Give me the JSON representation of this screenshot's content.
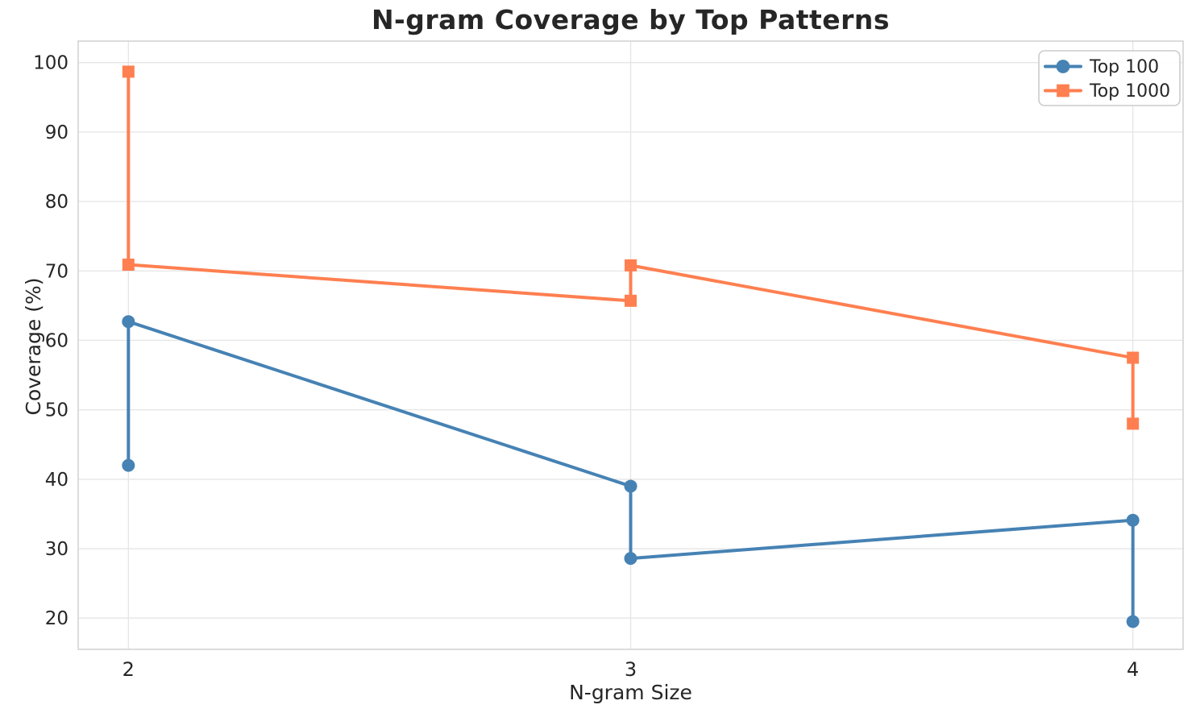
{
  "chart_data": {
    "type": "line",
    "title": "N-gram Coverage by Top Patterns",
    "xlabel": "N-gram Size",
    "ylabel": "Coverage (%)",
    "x_ticks": [
      2,
      3,
      4
    ],
    "y_ticks": [
      20,
      30,
      40,
      50,
      60,
      70,
      80,
      90,
      100
    ],
    "xlim": [
      1.9,
      4.1
    ],
    "ylim": [
      15.5,
      103.1
    ],
    "grid": true,
    "legend": {
      "position": "upper right",
      "entries": [
        "Top 100",
        "Top 1000"
      ]
    },
    "series": [
      {
        "name": "Top 100",
        "color": "#4682B4",
        "marker": "circle",
        "points": [
          [
            2,
            42.0
          ],
          [
            2,
            62.7
          ],
          [
            3,
            39.0
          ],
          [
            3,
            28.6
          ],
          [
            4,
            34.1
          ],
          [
            4,
            19.5
          ]
        ]
      },
      {
        "name": "Top 1000",
        "color": "#FF7F50",
        "marker": "square",
        "points": [
          [
            2,
            98.7
          ],
          [
            2,
            70.9
          ],
          [
            3,
            65.7
          ],
          [
            3,
            70.8
          ],
          [
            4,
            57.5
          ],
          [
            4,
            48.0
          ]
        ]
      }
    ],
    "colors": {
      "text": "#262626",
      "grid": "#e6e6e6",
      "spine": "#d4d4d4",
      "background": "#ffffff",
      "legend_border": "#cccccc"
    }
  }
}
